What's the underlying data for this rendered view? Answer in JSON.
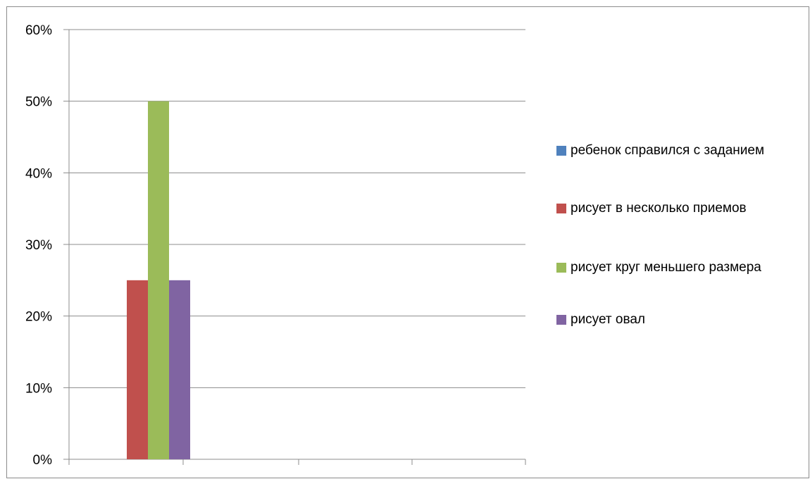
{
  "chart_data": {
    "type": "bar",
    "categories": [
      ""
    ],
    "series": [
      {
        "name": "ребенок справился с заданием",
        "color": "#4f81bd",
        "values": [
          0
        ]
      },
      {
        "name": "рисует в несколько приемов",
        "color": "#c0504d",
        "values": [
          25
        ]
      },
      {
        "name": "рисует круг меньшего размера",
        "color": "#9bbb59",
        "values": [
          50
        ]
      },
      {
        "name": "рисует овал",
        "color": "#8064a2",
        "values": [
          25
        ]
      }
    ],
    "yticks": [
      "0%",
      "10%",
      "20%",
      "30%",
      "40%",
      "50%",
      "60%"
    ],
    "ylim": [
      0,
      60
    ],
    "grid": true,
    "legend_position": "right",
    "title": "",
    "xlabel": "",
    "ylabel": ""
  }
}
